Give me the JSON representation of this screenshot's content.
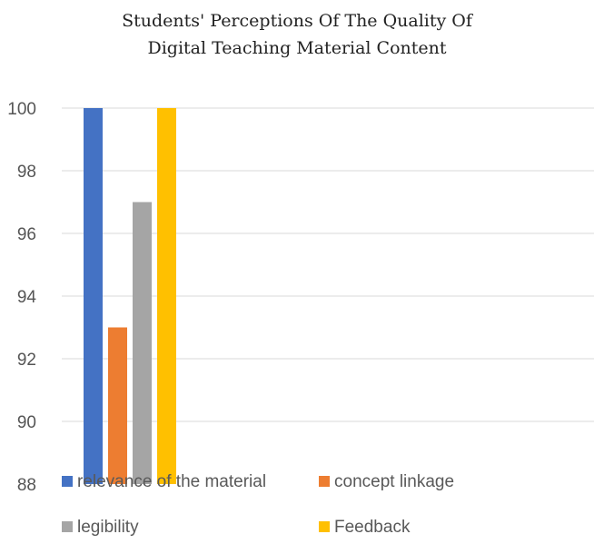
{
  "chart_data": {
    "type": "bar",
    "title_lines": [
      "Students' Perceptions Of The Quality Of",
      "Digital Teaching Material Content"
    ],
    "categories": [
      ""
    ],
    "series": [
      {
        "name": "relevance of the material",
        "values": [
          100
        ],
        "color": "#4472C4"
      },
      {
        "name": "concept linkage",
        "values": [
          93
        ],
        "color": "#ED7D31"
      },
      {
        "name": "legibility",
        "values": [
          97
        ],
        "color": "#A5A5A5"
      },
      {
        "name": "Feedback",
        "values": [
          100
        ],
        "color": "#FFC000"
      }
    ],
    "ylim": [
      88,
      100
    ],
    "yticks": [
      100,
      98,
      96,
      94,
      92,
      90,
      88
    ],
    "grid": true,
    "legend_position": "bottom"
  }
}
